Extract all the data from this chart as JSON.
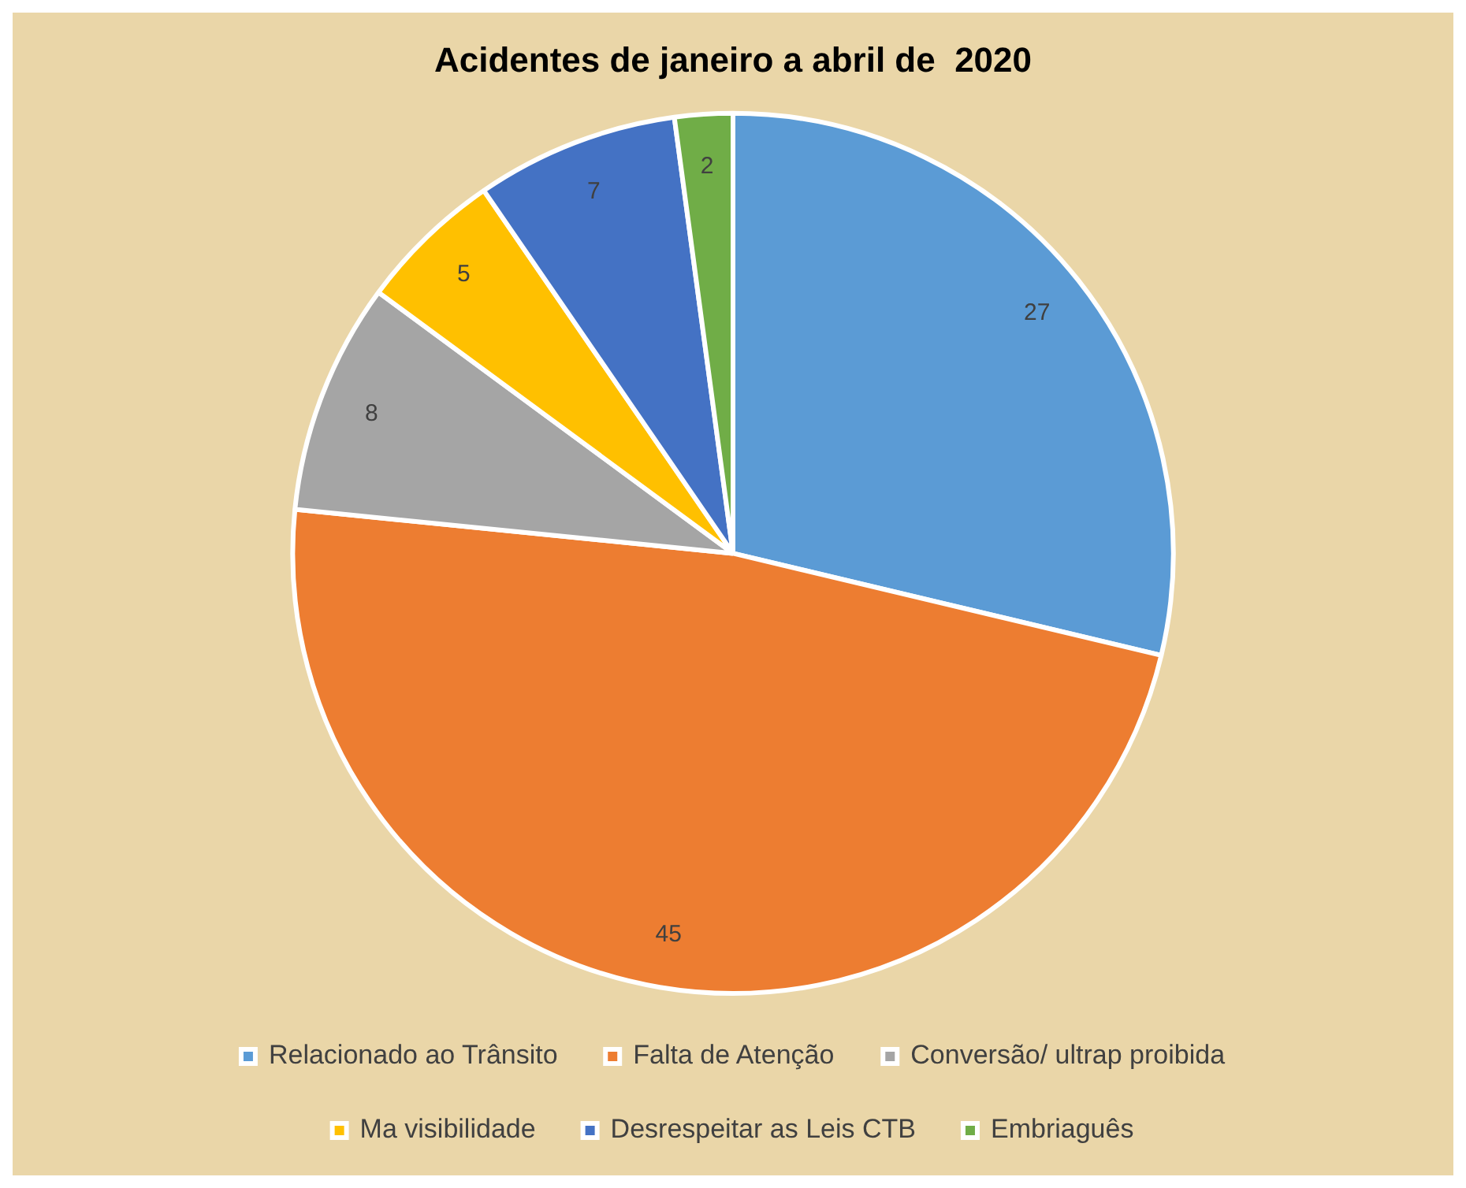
{
  "chart_data": {
    "type": "pie",
    "title": "Acidentes de janeiro a abril de  2020",
    "categories": [
      "Relacionado ao Trânsito",
      "Falta de Atenção",
      "Conversão/ ultrap proibida",
      "Ma visibilidade",
      "Desrespeitar as Leis CTB",
      "Embriaguês"
    ],
    "values": [
      27,
      45,
      8,
      5,
      7,
      2
    ],
    "colors": [
      "#5b9bd5",
      "#ed7d31",
      "#a5a5a5",
      "#ffc000",
      "#4472c4",
      "#70ad47"
    ],
    "data_labels": true,
    "legend": "bottom"
  }
}
